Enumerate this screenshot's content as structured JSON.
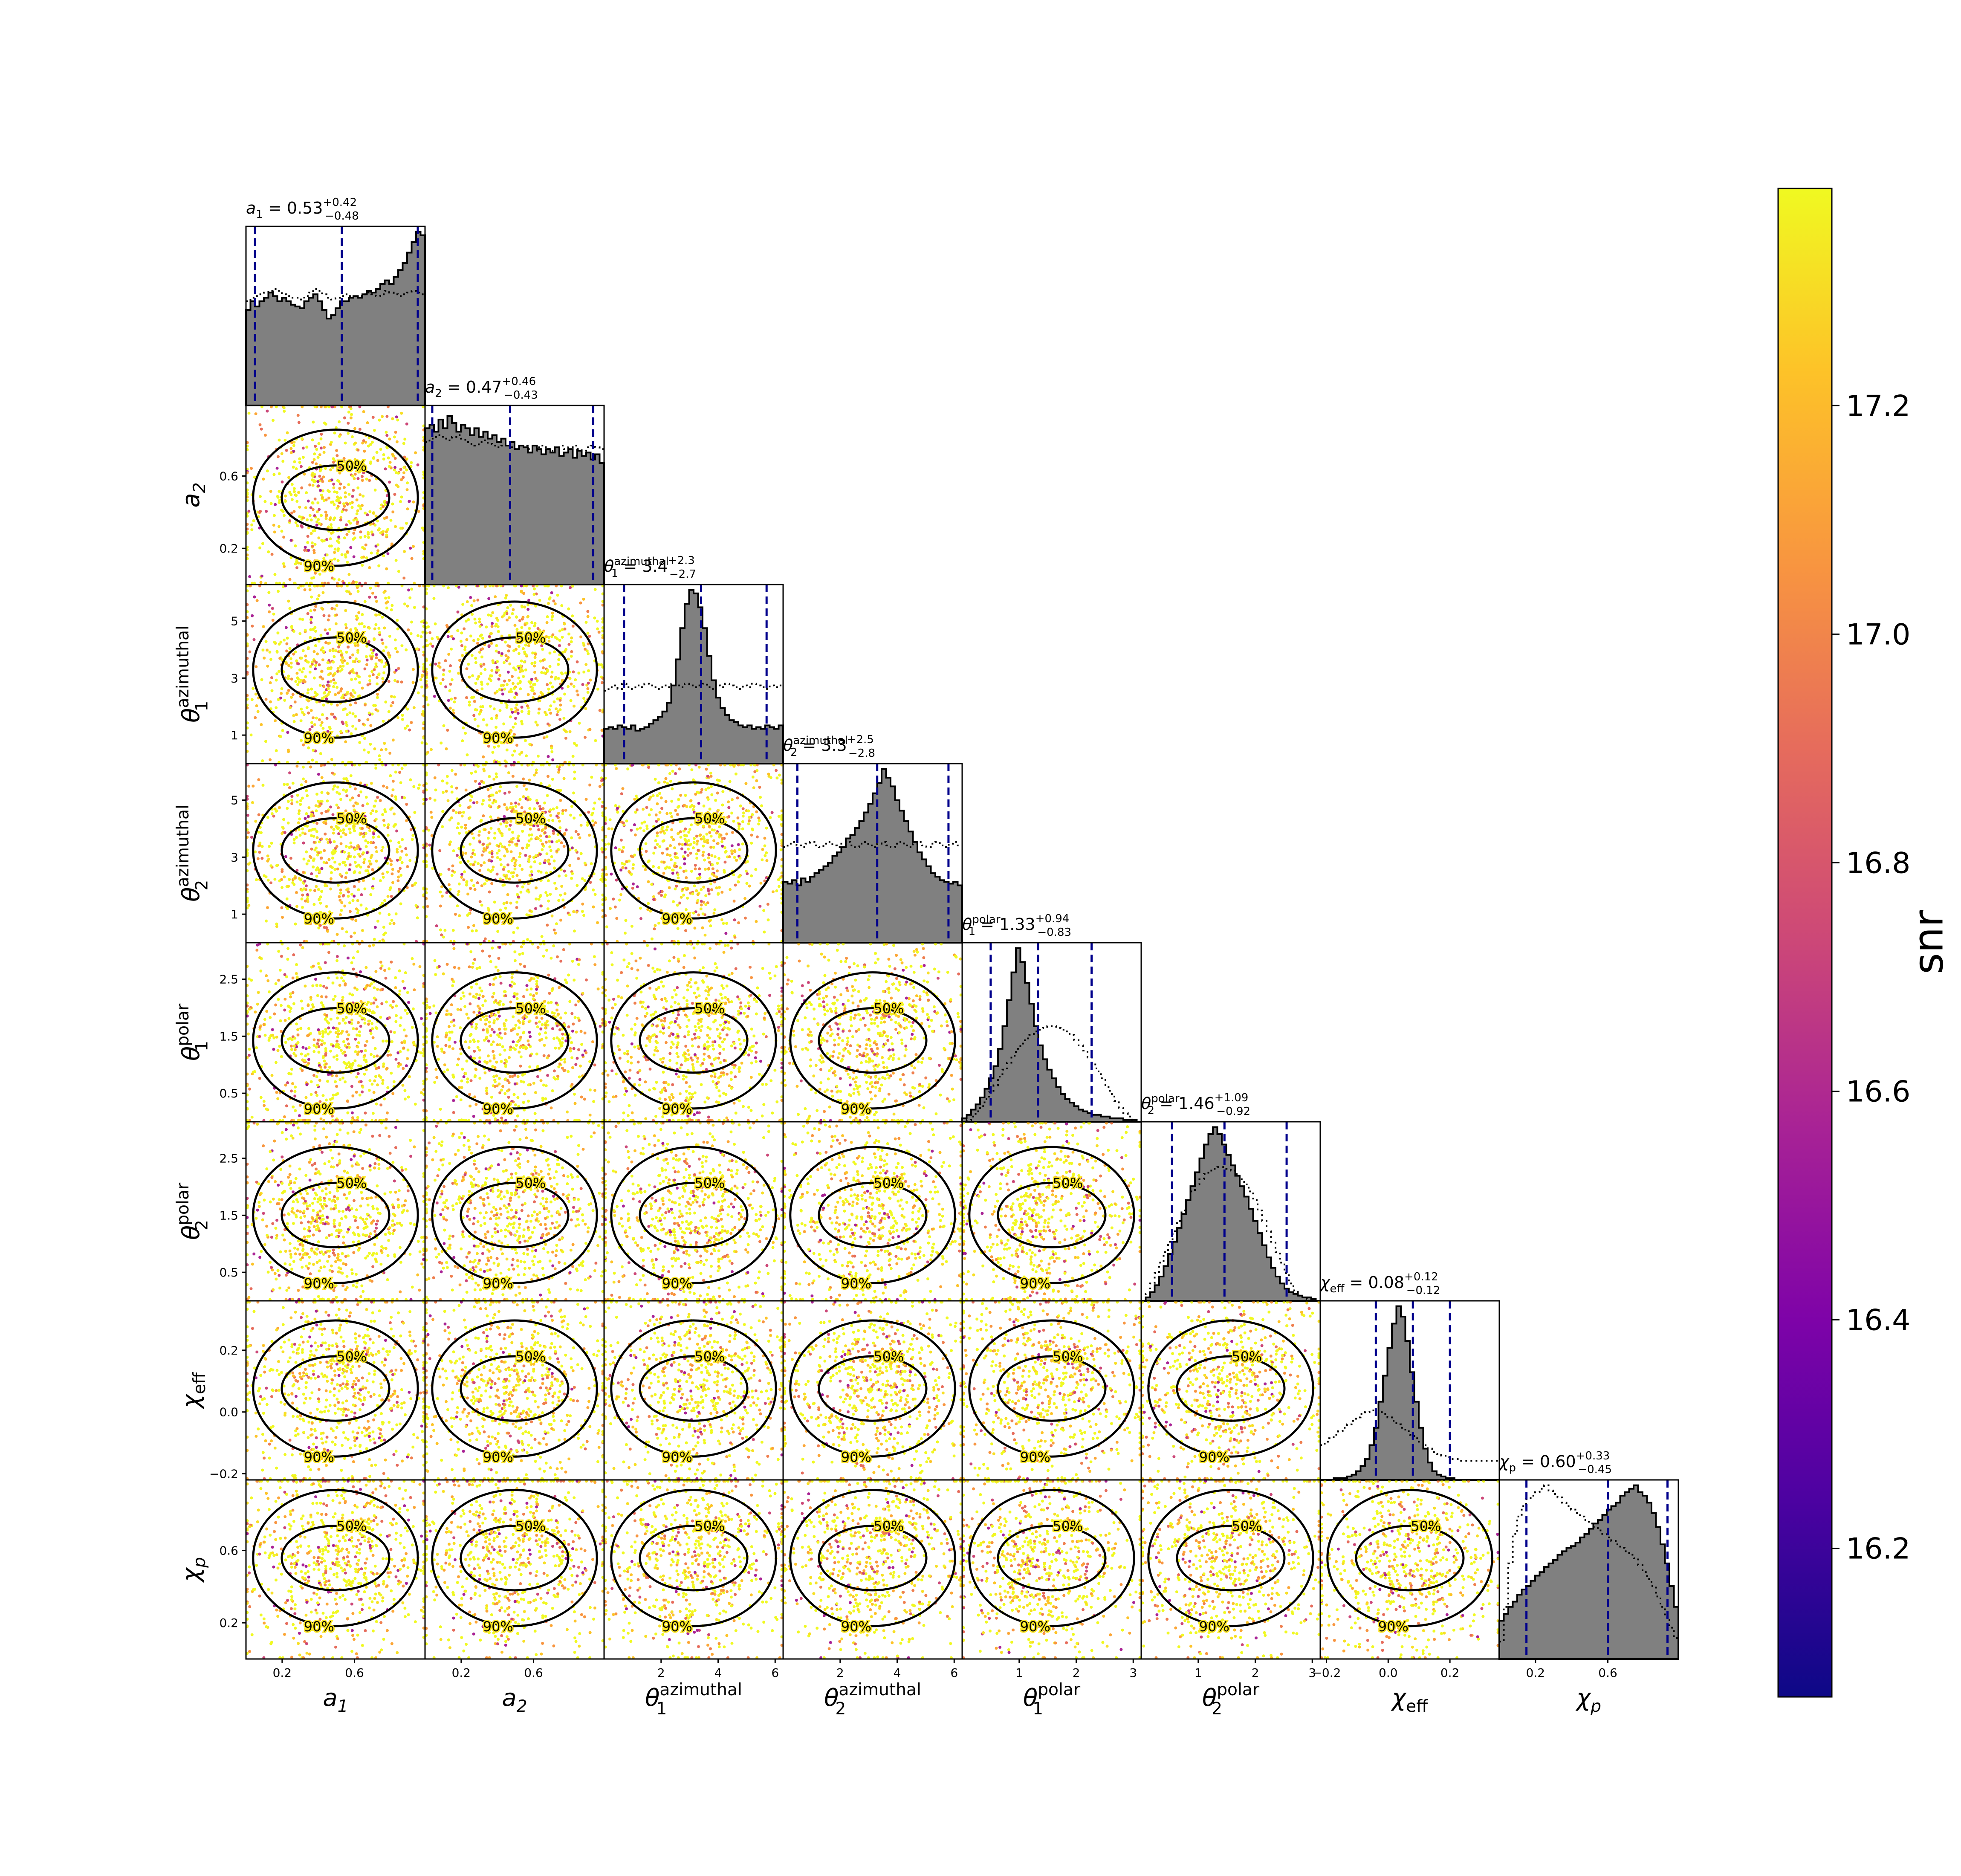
{
  "chart_data": {
    "type": "corner",
    "colorbar": {
      "label": "snr",
      "range": [
        16.07,
        17.39
      ],
      "ticks": [
        "16.2",
        "16.4",
        "16.6",
        "16.8",
        "17.0",
        "17.2"
      ],
      "colormap": "plasma"
    },
    "contour_levels": [
      "50%",
      "90%"
    ],
    "parameters": [
      {
        "key": "a1",
        "axis_label": "a_1",
        "range": [
          0.0,
          0.99
        ],
        "ticks": [
          0.2,
          0.6
        ],
        "tick_labels": [
          "0.2",
          "0.6"
        ],
        "title_name": "a_1",
        "median": "0.53",
        "plus": "+0.42",
        "minus": "−0.48",
        "quantiles": [
          0.05,
          0.53,
          0.95
        ],
        "posterior": [
          0.55,
          0.6,
          0.57,
          0.6,
          0.62,
          0.65,
          0.63,
          0.6,
          0.62,
          0.6,
          0.58,
          0.57,
          0.56,
          0.6,
          0.62,
          0.64,
          0.6,
          0.55,
          0.5,
          0.52,
          0.56,
          0.6,
          0.6,
          0.62,
          0.63,
          0.62,
          0.64,
          0.66,
          0.65,
          0.67,
          0.7,
          0.72,
          0.7,
          0.74,
          0.78,
          0.82,
          0.88,
          0.94,
          1.0,
          0.98
        ],
        "prior": [
          0.6,
          0.62,
          0.63,
          0.64,
          0.65,
          0.66,
          0.67,
          0.66,
          0.64,
          0.63,
          0.62,
          0.62,
          0.61,
          0.63,
          0.65,
          0.67,
          0.66,
          0.64,
          0.62,
          0.61,
          0.62,
          0.63,
          0.64,
          0.63,
          0.62,
          0.63,
          0.64,
          0.65,
          0.64,
          0.63,
          0.64,
          0.66,
          0.65,
          0.64,
          0.63,
          0.64,
          0.65,
          0.66,
          0.65,
          0.64
        ]
      },
      {
        "key": "a2",
        "axis_label": "a_2",
        "range": [
          0.0,
          0.99
        ],
        "ticks": [
          0.2,
          0.6
        ],
        "tick_labels": [
          "0.2",
          "0.6"
        ],
        "title_name": "a_2",
        "median": "0.47",
        "plus": "+0.46",
        "minus": "−0.43",
        "quantiles": [
          0.04,
          0.47,
          0.93
        ],
        "posterior": [
          0.9,
          0.92,
          0.88,
          0.95,
          0.9,
          0.97,
          0.93,
          0.88,
          0.92,
          0.9,
          0.86,
          0.9,
          0.85,
          0.88,
          0.84,
          0.86,
          0.82,
          0.84,
          0.8,
          0.82,
          0.78,
          0.8,
          0.79,
          0.76,
          0.8,
          0.78,
          0.75,
          0.78,
          0.76,
          0.79,
          0.74,
          0.76,
          0.78,
          0.73,
          0.77,
          0.74,
          0.76,
          0.72,
          0.75,
          0.7
        ],
        "prior": [
          0.82,
          0.84,
          0.85,
          0.86,
          0.84,
          0.83,
          0.85,
          0.86,
          0.84,
          0.82,
          0.81,
          0.8,
          0.82,
          0.83,
          0.81,
          0.8,
          0.79,
          0.8,
          0.81,
          0.79,
          0.78,
          0.79,
          0.8,
          0.78,
          0.77,
          0.79,
          0.8,
          0.78,
          0.77,
          0.79,
          0.8,
          0.78,
          0.79,
          0.8,
          0.78,
          0.77,
          0.79,
          0.8,
          0.79,
          0.78
        ]
      },
      {
        "key": "theta1_az",
        "axis_label": "θ_1^azimuthal",
        "range": [
          0.0,
          6.28
        ],
        "ticks": [
          1,
          3,
          5
        ],
        "tick_labels": [
          "1",
          "3",
          "5"
        ],
        "bottom_ticks": [
          2,
          4,
          6
        ],
        "bottom_tick_labels": [
          "2",
          "4",
          "6"
        ],
        "title_name": "θ_1^azimuthal",
        "median": "3.4",
        "plus": "+2.3",
        "minus": "−2.7",
        "quantiles": [
          0.7,
          3.4,
          5.7
        ],
        "posterior": [
          0.2,
          0.21,
          0.2,
          0.22,
          0.21,
          0.2,
          0.22,
          0.19,
          0.2,
          0.21,
          0.23,
          0.25,
          0.27,
          0.3,
          0.35,
          0.45,
          0.6,
          0.78,
          0.92,
          1.0,
          0.98,
          0.9,
          0.78,
          0.62,
          0.48,
          0.38,
          0.32,
          0.28,
          0.25,
          0.24,
          0.22,
          0.21,
          0.22,
          0.2,
          0.21,
          0.2,
          0.22,
          0.21,
          0.2,
          0.22
        ],
        "prior": [
          0.42,
          0.44,
          0.45,
          0.43,
          0.46,
          0.44,
          0.43,
          0.45,
          0.44,
          0.46,
          0.45,
          0.44,
          0.43,
          0.45,
          0.44,
          0.46,
          0.45,
          0.44,
          0.46,
          0.45,
          0.44,
          0.45,
          0.46,
          0.44,
          0.43,
          0.45,
          0.44,
          0.46,
          0.45,
          0.44,
          0.43,
          0.45,
          0.44,
          0.46,
          0.45,
          0.44,
          0.43,
          0.45,
          0.44,
          0.45
        ]
      },
      {
        "key": "theta2_az",
        "axis_label": "θ_2^azimuthal",
        "range": [
          0.0,
          6.28
        ],
        "ticks": [
          1,
          3,
          5
        ],
        "tick_labels": [
          "1",
          "3",
          "5"
        ],
        "bottom_ticks": [
          2,
          4,
          6
        ],
        "bottom_tick_labels": [
          "2",
          "4",
          "6"
        ],
        "title_name": "θ_2^azimuthal",
        "median": "3.3",
        "plus": "+2.5",
        "minus": "−2.8",
        "quantiles": [
          0.5,
          3.3,
          5.8
        ],
        "posterior": [
          0.35,
          0.34,
          0.36,
          0.33,
          0.37,
          0.35,
          0.38,
          0.4,
          0.42,
          0.44,
          0.46,
          0.5,
          0.52,
          0.55,
          0.6,
          0.62,
          0.66,
          0.7,
          0.75,
          0.8,
          0.86,
          0.92,
          1.0,
          0.95,
          0.9,
          0.82,
          0.76,
          0.7,
          0.64,
          0.58,
          0.52,
          0.48,
          0.44,
          0.4,
          0.38,
          0.36,
          0.35,
          0.34,
          0.35,
          0.33
        ],
        "prior": [
          0.55,
          0.57,
          0.58,
          0.56,
          0.55,
          0.57,
          0.58,
          0.56,
          0.55,
          0.57,
          0.58,
          0.56,
          0.55,
          0.57,
          0.58,
          0.56,
          0.55,
          0.57,
          0.58,
          0.56,
          0.55,
          0.57,
          0.58,
          0.56,
          0.55,
          0.57,
          0.58,
          0.56,
          0.55,
          0.57,
          0.58,
          0.56,
          0.55,
          0.57,
          0.58,
          0.56,
          0.55,
          0.57,
          0.58,
          0.56
        ]
      },
      {
        "key": "theta1_pol",
        "axis_label": "θ_1^polar",
        "range": [
          0.0,
          3.14
        ],
        "ticks": [
          0.5,
          1.5,
          2.5
        ],
        "tick_labels": [
          "0.5",
          "1.5",
          "2.5"
        ],
        "bottom_ticks": [
          1,
          2,
          3
        ],
        "bottom_tick_labels": [
          "1",
          "2",
          "3"
        ],
        "title_name": "θ_1^polar",
        "median": "1.33",
        "plus": "+0.94",
        "minus": "−0.83",
        "quantiles": [
          0.5,
          1.33,
          2.27
        ],
        "posterior": [
          0.02,
          0.04,
          0.07,
          0.1,
          0.14,
          0.19,
          0.25,
          0.32,
          0.42,
          0.55,
          0.7,
          0.86,
          1.0,
          0.92,
          0.8,
          0.68,
          0.55,
          0.44,
          0.36,
          0.3,
          0.25,
          0.2,
          0.16,
          0.13,
          0.11,
          0.09,
          0.07,
          0.06,
          0.05,
          0.04,
          0.04,
          0.03,
          0.03,
          0.02,
          0.02,
          0.02,
          0.01,
          0.01,
          0.01,
          0.0
        ],
        "prior": [
          0.0,
          0.01,
          0.03,
          0.06,
          0.09,
          0.13,
          0.17,
          0.21,
          0.26,
          0.3,
          0.34,
          0.38,
          0.42,
          0.45,
          0.48,
          0.5,
          0.52,
          0.53,
          0.54,
          0.55,
          0.55,
          0.54,
          0.53,
          0.52,
          0.5,
          0.47,
          0.44,
          0.41,
          0.37,
          0.33,
          0.29,
          0.25,
          0.2,
          0.16,
          0.12,
          0.08,
          0.05,
          0.03,
          0.01,
          0.0
        ]
      },
      {
        "key": "theta2_pol",
        "axis_label": "θ_2^polar",
        "range": [
          0.0,
          3.14
        ],
        "ticks": [
          0.5,
          1.5,
          2.5
        ],
        "tick_labels": [
          "0.5",
          "1.5",
          "2.5"
        ],
        "bottom_ticks": [
          1,
          2,
          3
        ],
        "bottom_tick_labels": [
          "1",
          "2",
          "3"
        ],
        "title_name": "θ_2^polar",
        "median": "1.46",
        "plus": "+1.09",
        "minus": "−0.92",
        "quantiles": [
          0.54,
          1.46,
          2.55
        ],
        "posterior": [
          0.0,
          0.02,
          0.05,
          0.09,
          0.14,
          0.2,
          0.27,
          0.34,
          0.42,
          0.5,
          0.58,
          0.66,
          0.74,
          0.82,
          0.9,
          0.96,
          1.0,
          0.96,
          0.9,
          0.84,
          0.78,
          0.72,
          0.66,
          0.6,
          0.53,
          0.46,
          0.39,
          0.32,
          0.25,
          0.19,
          0.14,
          0.1,
          0.07,
          0.05,
          0.04,
          0.03,
          0.02,
          0.02,
          0.01,
          0.0
        ],
        "prior": [
          0.0,
          0.04,
          0.1,
          0.16,
          0.22,
          0.28,
          0.34,
          0.4,
          0.46,
          0.52,
          0.58,
          0.63,
          0.67,
          0.7,
          0.73,
          0.75,
          0.76,
          0.77,
          0.77,
          0.76,
          0.75,
          0.73,
          0.7,
          0.67,
          0.63,
          0.58,
          0.52,
          0.46,
          0.4,
          0.34,
          0.28,
          0.22,
          0.16,
          0.1,
          0.06,
          0.03,
          0.02,
          0.01,
          0.0,
          0.0
        ]
      },
      {
        "key": "chi_eff",
        "axis_label": "χ_eff",
        "range": [
          -0.22,
          0.36
        ],
        "ticks": [
          -0.2,
          0.0,
          0.2
        ],
        "tick_labels": [
          "−0.2",
          "0.0",
          "0.2"
        ],
        "title_name": "χ_eff",
        "median": "0.08",
        "plus": "+0.12",
        "minus": "−0.12",
        "quantiles": [
          -0.04,
          0.08,
          0.2
        ],
        "posterior": [
          0.0,
          0.0,
          0.0,
          0.01,
          0.01,
          0.01,
          0.02,
          0.03,
          0.05,
          0.08,
          0.12,
          0.2,
          0.3,
          0.45,
          0.6,
          0.76,
          0.9,
          1.0,
          0.94,
          0.8,
          0.62,
          0.45,
          0.3,
          0.18,
          0.1,
          0.05,
          0.03,
          0.02,
          0.01,
          0.01,
          0.0,
          0.0,
          0.0,
          0.0,
          0.0,
          0.0,
          0.0,
          0.0,
          0.0,
          0.0
        ],
        "prior": [
          0.2,
          0.22,
          0.24,
          0.26,
          0.28,
          0.3,
          0.32,
          0.34,
          0.36,
          0.38,
          0.39,
          0.4,
          0.4,
          0.39,
          0.38,
          0.36,
          0.34,
          0.32,
          0.3,
          0.28,
          0.26,
          0.24,
          0.22,
          0.2,
          0.18,
          0.16,
          0.15,
          0.14,
          0.13,
          0.12,
          0.12,
          0.11,
          0.11,
          0.11,
          0.11,
          0.11,
          0.11,
          0.11,
          0.11,
          0.11
        ]
      },
      {
        "key": "chi_p",
        "axis_label": "χ_p",
        "range": [
          0.0,
          0.99
        ],
        "ticks": [
          0.2,
          0.6
        ],
        "tick_labels": [
          "0.2",
          "0.6"
        ],
        "title_name": "χ_p",
        "median": "0.60",
        "plus": "+0.33",
        "minus": "−0.45",
        "quantiles": [
          0.15,
          0.6,
          0.93
        ],
        "posterior": [
          0.22,
          0.26,
          0.3,
          0.33,
          0.37,
          0.4,
          0.42,
          0.45,
          0.48,
          0.5,
          0.53,
          0.55,
          0.57,
          0.6,
          0.62,
          0.64,
          0.65,
          0.67,
          0.7,
          0.72,
          0.75,
          0.78,
          0.8,
          0.83,
          0.86,
          0.88,
          0.9,
          0.94,
          0.96,
          0.98,
          1.0,
          0.96,
          0.94,
          0.9,
          0.84,
          0.76,
          0.66,
          0.55,
          0.42,
          0.3
        ],
        "prior": [
          0.1,
          0.3,
          0.55,
          0.72,
          0.82,
          0.88,
          0.92,
          0.94,
          0.96,
          0.98,
          1.0,
          0.97,
          0.95,
          0.93,
          0.9,
          0.88,
          0.86,
          0.84,
          0.82,
          0.8,
          0.78,
          0.76,
          0.74,
          0.72,
          0.7,
          0.68,
          0.66,
          0.64,
          0.62,
          0.6,
          0.58,
          0.54,
          0.5,
          0.46,
          0.42,
          0.36,
          0.3,
          0.24,
          0.18,
          0.12
        ]
      }
    ]
  }
}
